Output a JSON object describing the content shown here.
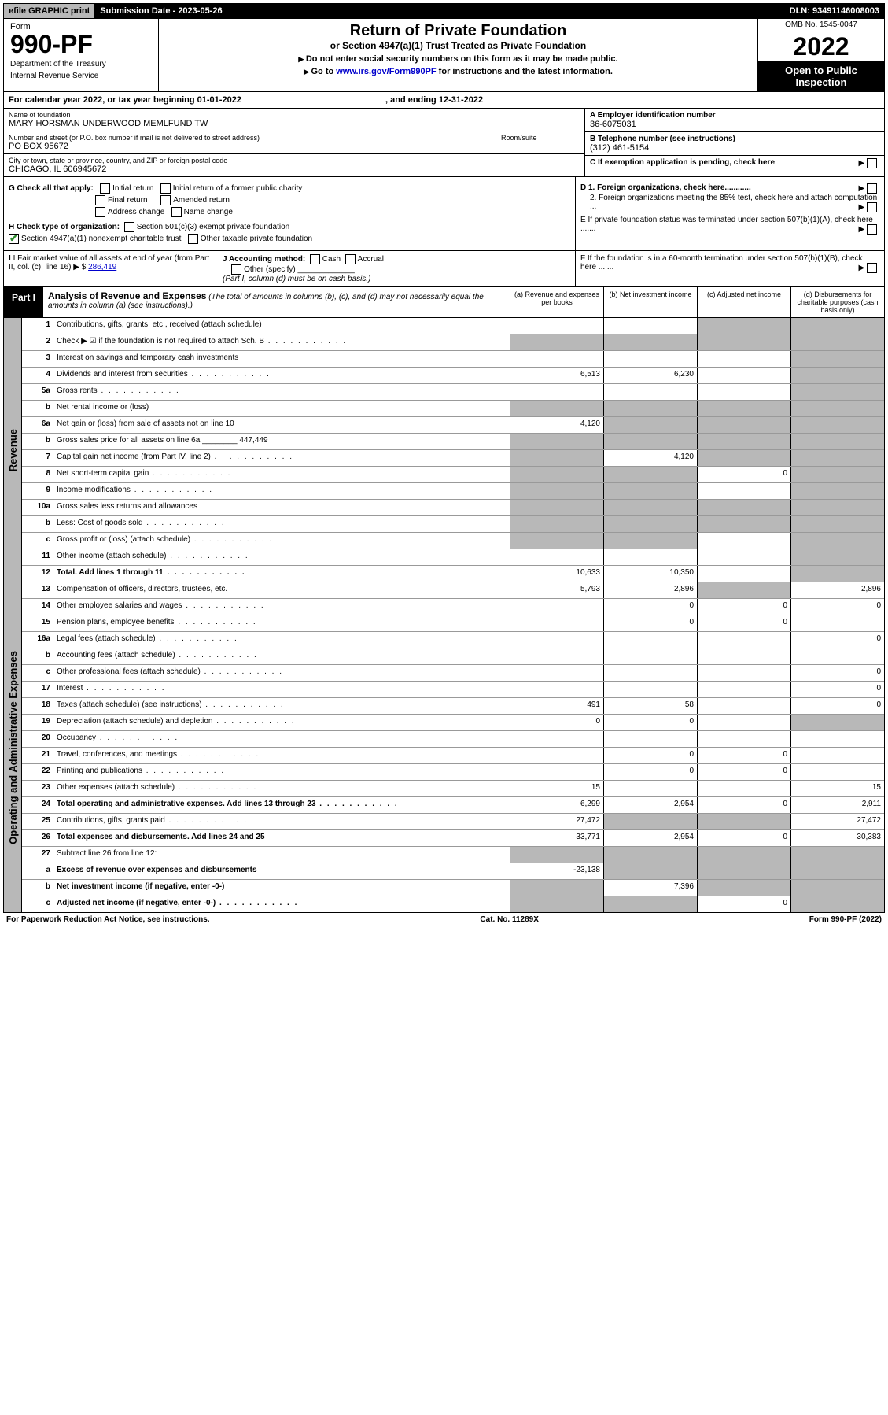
{
  "topbar": {
    "efile": "efile GRAPHIC print",
    "submission": "Submission Date - 2023-05-26",
    "dln": "DLN: 93491146008003"
  },
  "header": {
    "form_word": "Form",
    "form_num": "990-PF",
    "dept": "Department of the Treasury",
    "irs": "Internal Revenue Service",
    "title": "Return of Private Foundation",
    "subtitle": "or Section 4947(a)(1) Trust Treated as Private Foundation",
    "note1": "Do not enter social security numbers on this form as it may be made public.",
    "note2": "Go to ",
    "note2_link": "www.irs.gov/Form990PF",
    "note2_tail": " for instructions and the latest information.",
    "omb": "OMB No. 1545-0047",
    "year": "2022",
    "open": "Open to Public Inspection"
  },
  "calendar": {
    "prefix": "For calendar year 2022, or tax year beginning ",
    "begin": "01-01-2022",
    "mid": " , and ending ",
    "end": "12-31-2022"
  },
  "entity": {
    "name_label": "Name of foundation",
    "name": "MARY HORSMAN UNDERWOOD MEMLFUND TW",
    "addr_label": "Number and street (or P.O. box number if mail is not delivered to street address)",
    "addr": "PO BOX 95672",
    "room_label": "Room/suite",
    "city_label": "City or town, state or province, country, and ZIP or foreign postal code",
    "city": "CHICAGO, IL  606945672",
    "ein_label": "A Employer identification number",
    "ein": "36-6075031",
    "phone_label": "B Telephone number (see instructions)",
    "phone": "(312) 461-5154",
    "c_label": "C If exemption application is pending, check here"
  },
  "checks": {
    "g_label": "G Check all that apply:",
    "initial": "Initial return",
    "initial_former": "Initial return of a former public charity",
    "final": "Final return",
    "amended": "Amended return",
    "addr_change": "Address change",
    "name_change": "Name change",
    "h_label": "H Check type of organization:",
    "h_501c3": "Section 501(c)(3) exempt private foundation",
    "h_4947": "Section 4947(a)(1) nonexempt charitable trust",
    "h_other": "Other taxable private foundation",
    "d1": "D 1. Foreign organizations, check here............",
    "d2": "2. Foreign organizations meeting the 85% test, check here and attach computation ...",
    "e": "E  If private foundation status was terminated under section 507(b)(1)(A), check here .......",
    "f": "F  If the foundation is in a 60-month termination under section 507(b)(1)(B), check here ......."
  },
  "fmv": {
    "i_label": "I Fair market value of all assets at end of year (from Part II, col. (c), line 16)",
    "i_val": "286,419",
    "j_label": "J Accounting method:",
    "j_cash": "Cash",
    "j_accrual": "Accrual",
    "j_other": "Other (specify)",
    "j_note": "(Part I, column (d) must be on cash basis.)"
  },
  "part1": {
    "badge": "Part I",
    "title": "Analysis of Revenue and Expenses",
    "note": " (The total of amounts in columns (b), (c), and (d) may not necessarily equal the amounts in column (a) (see instructions).)",
    "col_a": "(a) Revenue and expenses per books",
    "col_b": "(b) Net investment income",
    "col_c": "(c) Adjusted net income",
    "col_d": "(d) Disbursements for charitable purposes (cash basis only)"
  },
  "sides": {
    "revenue": "Revenue",
    "expenses": "Operating and Administrative Expenses"
  },
  "lines": [
    {
      "n": "1",
      "lbl": "Contributions, gifts, grants, etc., received (attach schedule)",
      "a": "",
      "b": "",
      "c": "shade",
      "d": "shade"
    },
    {
      "n": "2",
      "lbl": "Check ▶ ☑ if the foundation is not required to attach Sch. B",
      "a": "shade",
      "b": "shade",
      "c": "shade",
      "d": "shade",
      "dots": true
    },
    {
      "n": "3",
      "lbl": "Interest on savings and temporary cash investments",
      "a": "",
      "b": "",
      "c": "",
      "d": "shade"
    },
    {
      "n": "4",
      "lbl": "Dividends and interest from securities",
      "a": "6,513",
      "b": "6,230",
      "c": "",
      "d": "shade",
      "dots": true
    },
    {
      "n": "5a",
      "lbl": "Gross rents",
      "a": "",
      "b": "",
      "c": "",
      "d": "shade",
      "dots": true
    },
    {
      "n": "b",
      "lbl": "Net rental income or (loss)",
      "a": "shade",
      "b": "shade",
      "c": "shade",
      "d": "shade"
    },
    {
      "n": "6a",
      "lbl": "Net gain or (loss) from sale of assets not on line 10",
      "a": "4,120",
      "b": "shade",
      "c": "shade",
      "d": "shade"
    },
    {
      "n": "b",
      "lbl": "Gross sales price for all assets on line 6a ________ 447,449",
      "a": "shade",
      "b": "shade",
      "c": "shade",
      "d": "shade"
    },
    {
      "n": "7",
      "lbl": "Capital gain net income (from Part IV, line 2)",
      "a": "shade",
      "b": "4,120",
      "c": "shade",
      "d": "shade",
      "dots": true
    },
    {
      "n": "8",
      "lbl": "Net short-term capital gain",
      "a": "shade",
      "b": "shade",
      "c": "0",
      "d": "shade",
      "dots": true
    },
    {
      "n": "9",
      "lbl": "Income modifications",
      "a": "shade",
      "b": "shade",
      "c": "",
      "d": "shade",
      "dots": true
    },
    {
      "n": "10a",
      "lbl": "Gross sales less returns and allowances",
      "a": "shade",
      "b": "shade",
      "c": "shade",
      "d": "shade"
    },
    {
      "n": "b",
      "lbl": "Less: Cost of goods sold",
      "a": "shade",
      "b": "shade",
      "c": "shade",
      "d": "shade",
      "dots": true
    },
    {
      "n": "c",
      "lbl": "Gross profit or (loss) (attach schedule)",
      "a": "shade",
      "b": "shade",
      "c": "",
      "d": "shade",
      "dots": true
    },
    {
      "n": "11",
      "lbl": "Other income (attach schedule)",
      "a": "",
      "b": "",
      "c": "",
      "d": "shade",
      "dots": true
    },
    {
      "n": "12",
      "lbl": "Total. Add lines 1 through 11",
      "a": "10,633",
      "b": "10,350",
      "c": "",
      "d": "shade",
      "bold": true,
      "dots": true
    }
  ],
  "exp_lines": [
    {
      "n": "13",
      "lbl": "Compensation of officers, directors, trustees, etc.",
      "a": "5,793",
      "b": "2,896",
      "c": "shade",
      "d": "2,896"
    },
    {
      "n": "14",
      "lbl": "Other employee salaries and wages",
      "a": "",
      "b": "0",
      "c": "0",
      "d": "0",
      "dots": true
    },
    {
      "n": "15",
      "lbl": "Pension plans, employee benefits",
      "a": "",
      "b": "0",
      "c": "0",
      "d": "",
      "dots": true
    },
    {
      "n": "16a",
      "lbl": "Legal fees (attach schedule)",
      "a": "",
      "b": "",
      "c": "",
      "d": "0",
      "dots": true
    },
    {
      "n": "b",
      "lbl": "Accounting fees (attach schedule)",
      "a": "",
      "b": "",
      "c": "",
      "d": "",
      "dots": true
    },
    {
      "n": "c",
      "lbl": "Other professional fees (attach schedule)",
      "a": "",
      "b": "",
      "c": "",
      "d": "0",
      "dots": true
    },
    {
      "n": "17",
      "lbl": "Interest",
      "a": "",
      "b": "",
      "c": "",
      "d": "0",
      "dots": true
    },
    {
      "n": "18",
      "lbl": "Taxes (attach schedule) (see instructions)",
      "a": "491",
      "b": "58",
      "c": "",
      "d": "0",
      "dots": true
    },
    {
      "n": "19",
      "lbl": "Depreciation (attach schedule) and depletion",
      "a": "0",
      "b": "0",
      "c": "",
      "d": "shade",
      "dots": true
    },
    {
      "n": "20",
      "lbl": "Occupancy",
      "a": "",
      "b": "",
      "c": "",
      "d": "",
      "dots": true
    },
    {
      "n": "21",
      "lbl": "Travel, conferences, and meetings",
      "a": "",
      "b": "0",
      "c": "0",
      "d": "",
      "dots": true
    },
    {
      "n": "22",
      "lbl": "Printing and publications",
      "a": "",
      "b": "0",
      "c": "0",
      "d": "",
      "dots": true
    },
    {
      "n": "23",
      "lbl": "Other expenses (attach schedule)",
      "a": "15",
      "b": "",
      "c": "",
      "d": "15",
      "dots": true
    },
    {
      "n": "24",
      "lbl": "Total operating and administrative expenses. Add lines 13 through 23",
      "a": "6,299",
      "b": "2,954",
      "c": "0",
      "d": "2,911",
      "bold": true,
      "dots": true
    },
    {
      "n": "25",
      "lbl": "Contributions, gifts, grants paid",
      "a": "27,472",
      "b": "shade",
      "c": "shade",
      "d": "27,472",
      "dots": true
    },
    {
      "n": "26",
      "lbl": "Total expenses and disbursements. Add lines 24 and 25",
      "a": "33,771",
      "b": "2,954",
      "c": "0",
      "d": "30,383",
      "bold": true
    },
    {
      "n": "27",
      "lbl": "Subtract line 26 from line 12:",
      "a": "shade",
      "b": "shade",
      "c": "shade",
      "d": "shade"
    },
    {
      "n": "a",
      "lbl": "Excess of revenue over expenses and disbursements",
      "a": "-23,138",
      "b": "shade",
      "c": "shade",
      "d": "shade",
      "bold": true
    },
    {
      "n": "b",
      "lbl": "Net investment income (if negative, enter -0-)",
      "a": "shade",
      "b": "7,396",
      "c": "shade",
      "d": "shade",
      "bold": true
    },
    {
      "n": "c",
      "lbl": "Adjusted net income (if negative, enter -0-)",
      "a": "shade",
      "b": "shade",
      "c": "0",
      "d": "shade",
      "bold": true,
      "dots": true
    }
  ],
  "footer": {
    "left": "For Paperwork Reduction Act Notice, see instructions.",
    "mid": "Cat. No. 11289X",
    "right": "Form 990-PF (2022)"
  }
}
